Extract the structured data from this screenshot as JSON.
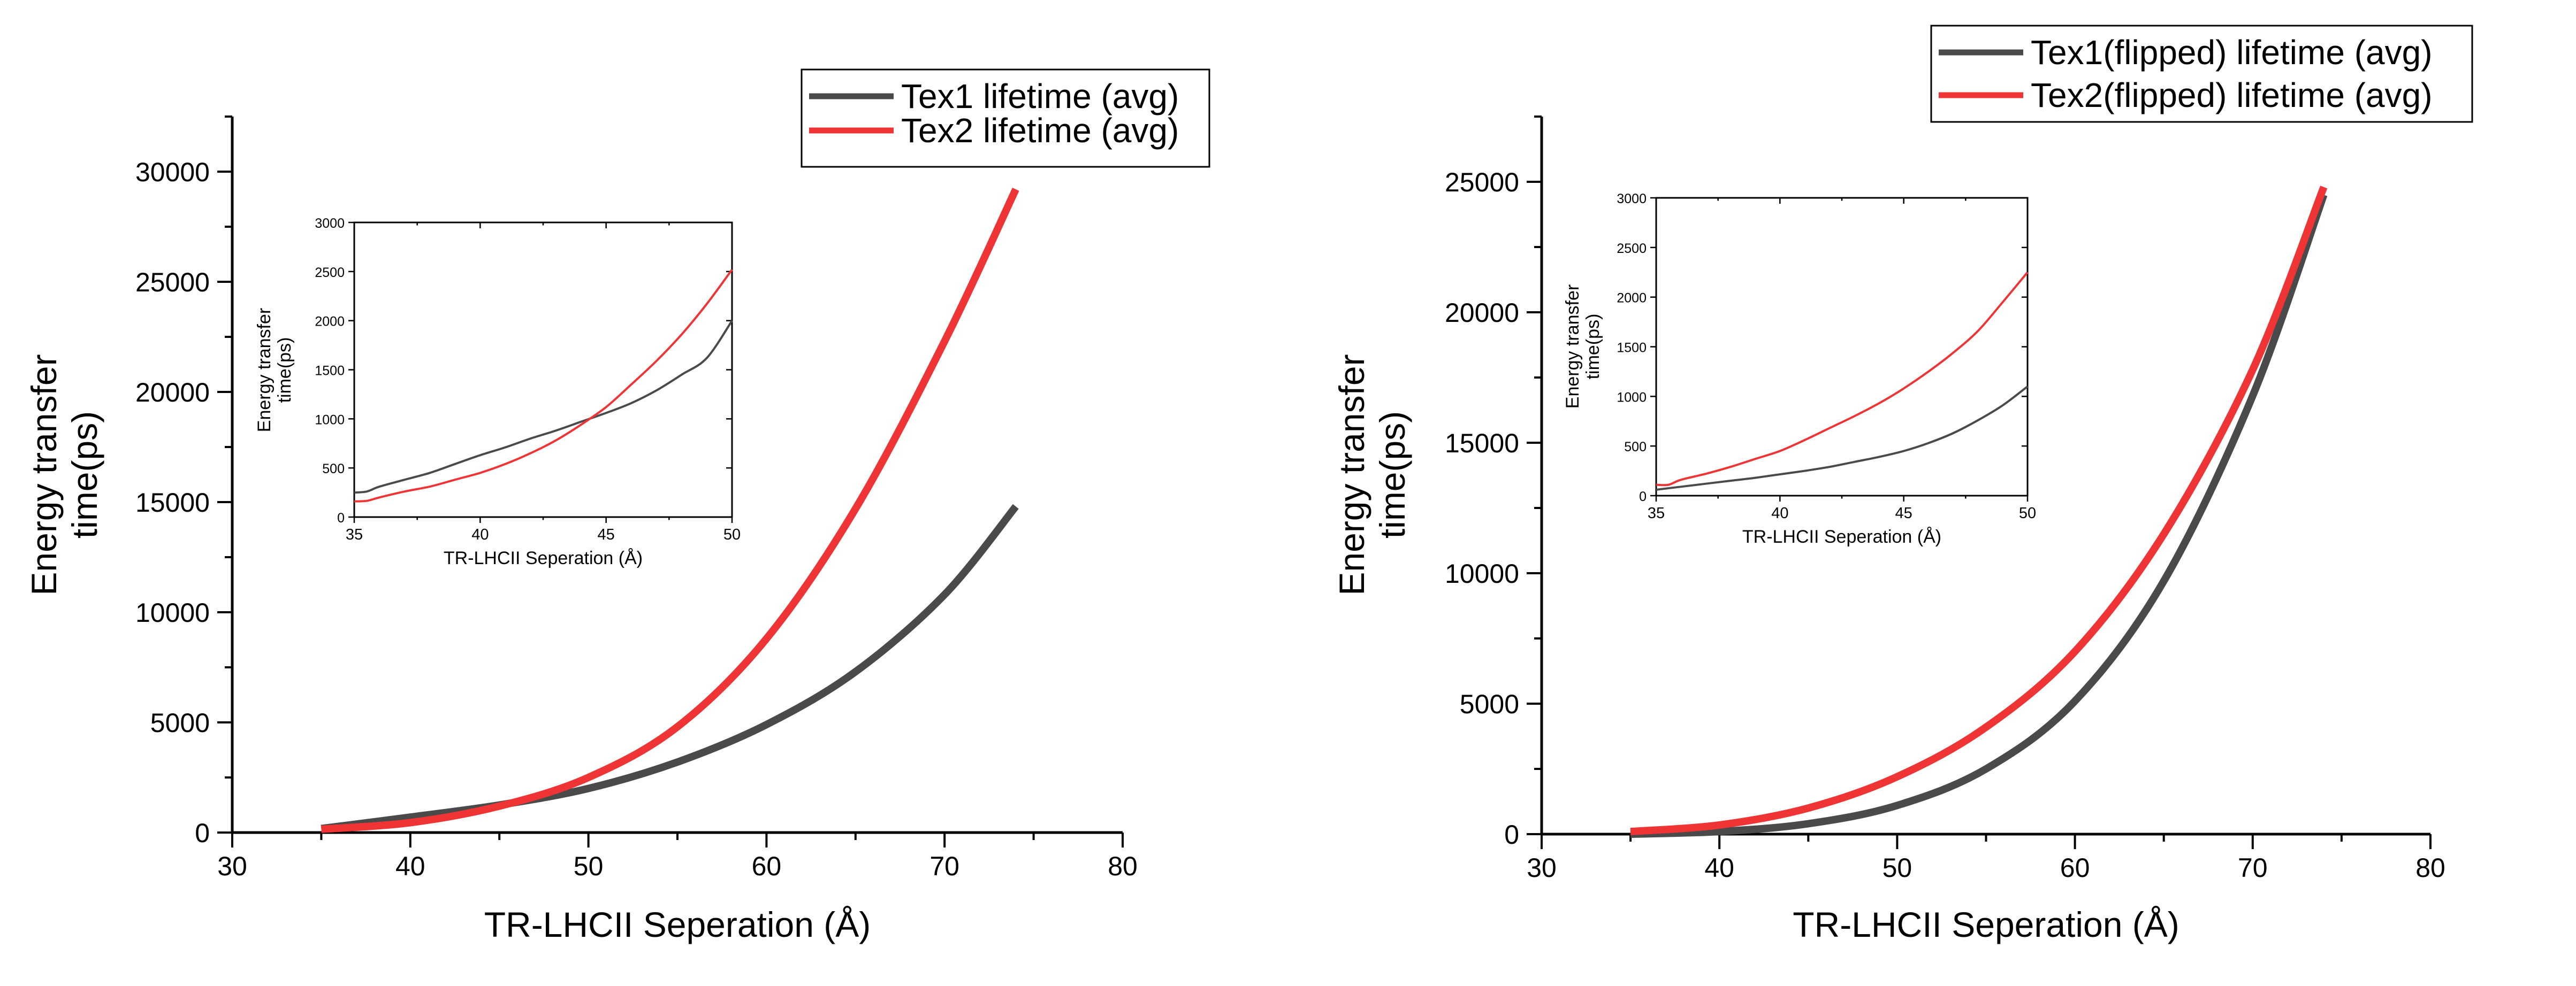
{
  "chart_data": [
    {
      "type": "line",
      "ylabel": "Energy transfer\ntime(ps)",
      "xlabel": "TR-LHCII Seperation (Å)",
      "xlim": [
        30,
        80
      ],
      "ylim": [
        0,
        32500
      ],
      "xticks": [
        30,
        40,
        50,
        60,
        70,
        80
      ],
      "yticks": [
        0,
        5000,
        10000,
        15000,
        20000,
        25000,
        30000
      ],
      "grid": false,
      "legend_position": "top-right",
      "series": [
        {
          "name": "Tex1 lifetime (avg)",
          "color": "#4a4a4a",
          "x": [
            35,
            40,
            45,
            50,
            55,
            60,
            65,
            70,
            74
          ],
          "y": [
            180,
            700,
            1250,
            2000,
            3200,
            4900,
            7300,
            10800,
            14800
          ]
        },
        {
          "name": "Tex2 lifetime (avg)",
          "color": "#ee3434",
          "x": [
            35,
            40,
            45,
            50,
            55,
            60,
            65,
            70,
            74
          ],
          "y": [
            150,
            450,
            1200,
            2500,
            4800,
            8800,
            14700,
            22300,
            29200
          ]
        }
      ],
      "inset": {
        "ylabel": "Energy transfer\ntime(ps)",
        "xlabel": "TR-LHCII Seperation (Å)",
        "xlim": [
          35,
          50
        ],
        "ylim": [
          0,
          3000
        ],
        "xticks": [
          35,
          40,
          45,
          50
        ],
        "yticks": [
          0,
          500,
          1000,
          1500,
          2000,
          2500,
          3000
        ],
        "series": [
          {
            "name": "Tex1 lifetime (avg)",
            "color": "#4a4a4a",
            "x": [
              35,
              35.5,
              36,
              37,
              38,
              39,
              40,
              41,
              42,
              43,
              44,
              45,
              46,
              47,
              48,
              49,
              50
            ],
            "y": [
              250,
              260,
              310,
              380,
              450,
              540,
              630,
              710,
              800,
              880,
              970,
              1060,
              1160,
              1290,
              1450,
              1620,
              2000
            ]
          },
          {
            "name": "Tex2 lifetime (avg)",
            "color": "#ee3434",
            "x": [
              35,
              35.5,
              36,
              37,
              38,
              39,
              40,
              41,
              42,
              43,
              44,
              45,
              46,
              47,
              48,
              49,
              50
            ],
            "y": [
              160,
              165,
              200,
              260,
              310,
              380,
              450,
              540,
              650,
              780,
              940,
              1120,
              1350,
              1590,
              1860,
              2170,
              2520
            ]
          }
        ]
      }
    },
    {
      "type": "line",
      "ylabel": "Energy transfer\ntime(ps)",
      "xlabel": "TR-LHCII Seperation (Å)",
      "xlim": [
        30,
        80
      ],
      "ylim": [
        0,
        27500
      ],
      "xticks": [
        30,
        40,
        50,
        60,
        70,
        80
      ],
      "yticks": [
        0,
        5000,
        10000,
        15000,
        20000,
        25000
      ],
      "grid": false,
      "legend_position": "top-right",
      "series": [
        {
          "name": "Tex1(flipped) lifetime (avg)",
          "color": "#4a4a4a",
          "x": [
            35,
            40,
            45,
            50,
            55,
            60,
            65,
            70,
            74
          ],
          "y": [
            0,
            100,
            400,
            1100,
            2500,
            5100,
            9700,
            16800,
            24500
          ]
        },
        {
          "name": "Tex2(flipped) lifetime (avg)",
          "color": "#ee3434",
          "x": [
            35,
            40,
            45,
            50,
            55,
            60,
            65,
            70,
            74
          ],
          "y": [
            100,
            350,
            1000,
            2200,
            4100,
            7000,
            11500,
            17800,
            24800
          ]
        }
      ],
      "inset": {
        "ylabel": "Energy transfer\ntime(ps)",
        "xlabel": "TR-LHCII Seperation (Å)",
        "xlim": [
          35,
          50
        ],
        "ylim": [
          0,
          3000
        ],
        "xticks": [
          35,
          40,
          45,
          50
        ],
        "yticks": [
          0,
          500,
          1000,
          1500,
          2000,
          2500,
          3000
        ],
        "series": [
          {
            "name": "Tex1(flipped) lifetime (avg)",
            "color": "#4a4a4a",
            "x": [
              35,
              36,
              37,
              38,
              39,
              40,
              41,
              42,
              43,
              44,
              45,
              46,
              47,
              48,
              49,
              50
            ],
            "y": [
              60,
              90,
              120,
              150,
              180,
              215,
              250,
              290,
              340,
              390,
              450,
              530,
              630,
              760,
              910,
              1100
            ]
          },
          {
            "name": "Tex2(flipped) lifetime (avg)",
            "color": "#ee3434",
            "x": [
              35,
              35.5,
              36,
              37,
              38,
              39,
              40,
              41,
              42,
              43,
              44,
              45,
              46,
              47,
              48,
              49,
              50
            ],
            "y": [
              110,
              110,
              160,
              220,
              290,
              370,
              450,
              560,
              680,
              800,
              930,
              1080,
              1250,
              1440,
              1660,
              1950,
              2250
            ]
          }
        ]
      }
    }
  ]
}
